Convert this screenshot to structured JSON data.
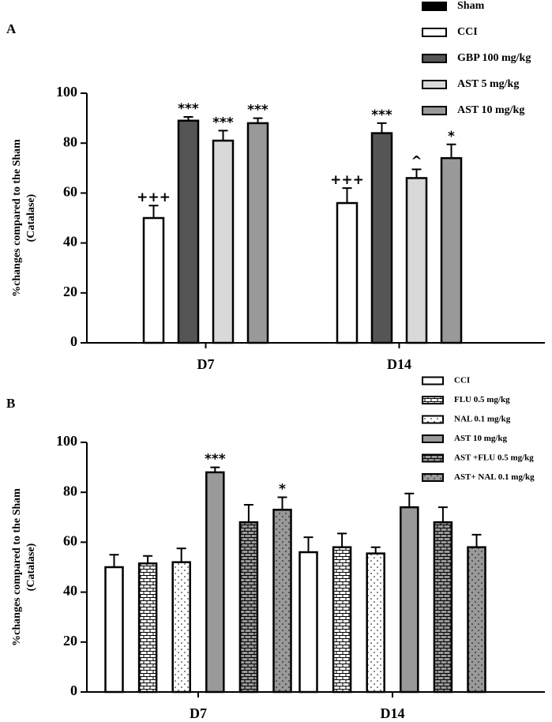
{
  "chart_data": [
    {
      "type": "bar",
      "panel": "A",
      "ylabel": [
        "%changes compared to the Sham",
        "(Catalase)"
      ],
      "categories": [
        "D7",
        "D14"
      ],
      "ylim": [
        0,
        100
      ],
      "yticks": [
        0,
        20,
        40,
        60,
        80,
        100
      ],
      "legend": "top-right",
      "series": [
        {
          "name": "Sham",
          "color": "#000000",
          "pattern": null,
          "values": [
            null,
            null
          ],
          "errors": [
            null,
            null
          ],
          "annotations": [
            null,
            null
          ]
        },
        {
          "name": "CCI",
          "color": "#ffffff",
          "pattern": null,
          "values": [
            50,
            56
          ],
          "errors": [
            5,
            6
          ],
          "annotations": [
            "+++",
            "+++"
          ]
        },
        {
          "name": "GBP 100 mg/kg",
          "color": "#555555",
          "pattern": null,
          "values": [
            89,
            84
          ],
          "errors": [
            1.5,
            4
          ],
          "annotations": [
            "***",
            "***"
          ]
        },
        {
          "name": "AST 5 mg/kg",
          "color": "#d9d9d9",
          "pattern": null,
          "values": [
            81,
            66
          ],
          "errors": [
            4,
            3.5
          ],
          "annotations": [
            "***",
            "^"
          ]
        },
        {
          "name": "AST 10 mg/kg",
          "color": "#999999",
          "pattern": null,
          "values": [
            88,
            74
          ],
          "errors": [
            2,
            5.5
          ],
          "annotations": [
            "***",
            "*"
          ]
        }
      ]
    },
    {
      "type": "bar",
      "panel": "B",
      "ylabel": [
        "%changes compared to the Sham",
        "(Catalase)"
      ],
      "categories": [
        "D7",
        "D14"
      ],
      "ylim": [
        0,
        100
      ],
      "yticks": [
        0,
        20,
        40,
        60,
        80,
        100
      ],
      "legend": "top-right",
      "series": [
        {
          "name": "CCI",
          "color": "#ffffff",
          "pattern": null,
          "values": [
            50,
            56
          ],
          "errors": [
            5,
            6
          ],
          "annotations": [
            null,
            null
          ]
        },
        {
          "name": "FLU 0.5 mg/kg",
          "color": "#ffffff",
          "pattern": "brick",
          "values": [
            51.5,
            58
          ],
          "errors": [
            3,
            5.5
          ],
          "annotations": [
            null,
            null
          ]
        },
        {
          "name": "NAL 0.1 mg/kg",
          "color": "#ffffff",
          "pattern": "dots",
          "values": [
            52,
            55.5
          ],
          "errors": [
            5.5,
            2.5
          ],
          "annotations": [
            null,
            null
          ]
        },
        {
          "name": "AST 10 mg/kg",
          "color": "#999999",
          "pattern": null,
          "values": [
            88,
            74
          ],
          "errors": [
            2,
            5.5
          ],
          "annotations": [
            "***",
            null
          ]
        },
        {
          "name": "AST +FLU 0.5 mg/kg",
          "color": "#999999",
          "pattern": "brick",
          "values": [
            68,
            68
          ],
          "errors": [
            7,
            6
          ],
          "annotations": [
            null,
            null
          ]
        },
        {
          "name": "AST+ NAL 0.1 mg/kg",
          "color": "#999999",
          "pattern": "dots",
          "values": [
            73,
            58
          ],
          "errors": [
            5,
            5
          ],
          "annotations": [
            "*",
            null
          ]
        }
      ]
    }
  ]
}
